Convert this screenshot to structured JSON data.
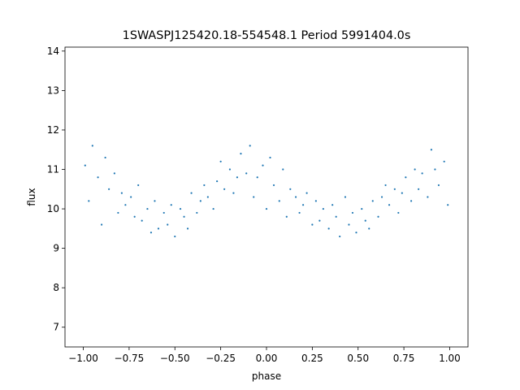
{
  "chart_data": {
    "type": "scatter",
    "title": "1SWASPJ125420.18-554548.1 Period 5991404.0s",
    "xlabel": "phase",
    "ylabel": "flux",
    "xlim": [
      -1.1,
      1.1
    ],
    "ylim": [
      6.5,
      14.1
    ],
    "xticks": [
      -1.0,
      -0.75,
      -0.5,
      -0.25,
      0.0,
      0.25,
      0.5,
      0.75,
      1.0
    ],
    "xtick_labels": [
      "−1.00",
      "−0.75",
      "−0.50",
      "−0.25",
      "0.00",
      "0.25",
      "0.50",
      "0.75",
      "1.00"
    ],
    "yticks": [
      7,
      8,
      9,
      10,
      11,
      12,
      13,
      14
    ],
    "ytick_labels": [
      "7",
      "8",
      "9",
      "10",
      "11",
      "12",
      "13",
      "14"
    ],
    "grid": false,
    "marker_color": "#1f77b4",
    "series": [
      {
        "x": [
          -0.99,
          -0.97,
          -0.95,
          -0.92,
          -0.9,
          -0.88,
          -0.86,
          -0.83,
          -0.81,
          -0.79,
          -0.77,
          -0.74,
          -0.72,
          -0.7,
          -0.68,
          -0.65,
          -0.63,
          -0.61,
          -0.59,
          -0.56,
          -0.54,
          -0.52,
          -0.5,
          -0.47,
          -0.45,
          -0.43,
          -0.41,
          -0.38,
          -0.36,
          -0.34,
          -0.32,
          -0.29,
          -0.27,
          -0.25,
          -0.23,
          -0.2,
          -0.18,
          -0.16,
          -0.14,
          -0.11,
          -0.09,
          -0.07,
          -0.05,
          -0.02,
          0.0,
          0.02,
          0.04,
          0.07,
          0.09,
          0.11,
          0.13,
          0.16,
          0.18,
          0.2,
          0.22,
          0.25,
          0.27,
          0.29,
          0.31,
          0.34,
          0.36,
          0.38,
          0.4,
          0.43,
          0.45,
          0.47,
          0.49,
          0.52,
          0.54,
          0.56,
          0.58,
          0.61,
          0.63,
          0.65,
          0.67,
          0.7,
          0.72,
          0.74,
          0.76,
          0.79,
          0.81,
          0.83,
          0.85,
          0.88,
          0.9,
          0.92,
          0.94,
          0.97,
          0.99
        ],
        "y": [
          11.1,
          10.2,
          11.6,
          10.8,
          9.6,
          11.3,
          10.5,
          10.9,
          9.9,
          10.4,
          10.1,
          10.3,
          9.8,
          10.6,
          9.7,
          10.0,
          9.4,
          10.2,
          9.5,
          9.9,
          9.6,
          10.1,
          9.3,
          10.0,
          9.8,
          9.5,
          10.4,
          9.9,
          10.2,
          10.6,
          10.3,
          10.0,
          10.7,
          11.2,
          10.5,
          11.0,
          10.4,
          10.8,
          11.4,
          10.9,
          11.6,
          10.3,
          10.8,
          11.1,
          10.0,
          11.3,
          10.6,
          10.2,
          11.0,
          9.8,
          10.5,
          10.3,
          9.9,
          10.1,
          10.4,
          9.6,
          10.2,
          9.7,
          10.0,
          9.5,
          10.1,
          9.8,
          9.3,
          10.3,
          9.6,
          9.9,
          9.4,
          10.0,
          9.7,
          9.5,
          10.2,
          9.8,
          10.3,
          10.6,
          10.1,
          10.5,
          9.9,
          10.4,
          10.8,
          10.2,
          11.0,
          10.5,
          10.9,
          10.3,
          11.5,
          11.0,
          10.6,
          11.2,
          10.1
        ]
      }
    ]
  }
}
